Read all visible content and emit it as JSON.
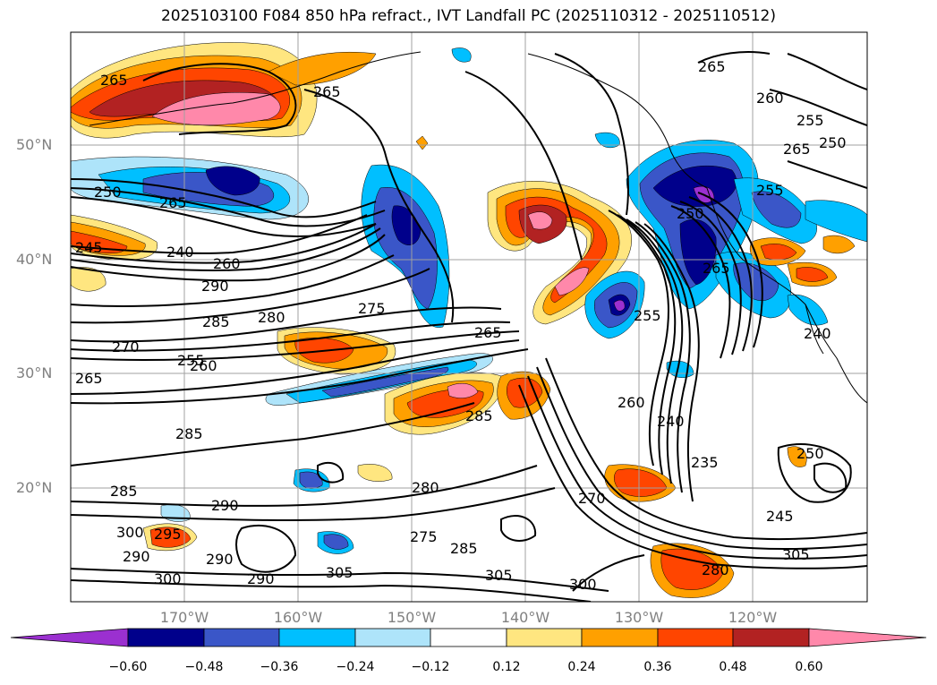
{
  "title": "2025103100 F084 850 hPa refract., IVT Landfall PC (2025110312 - 2025110512)",
  "lat_labels": [
    "50°N",
    "40°N",
    "30°N",
    "20°N"
  ],
  "lon_labels": [
    "170°W",
    "160°W",
    "150°W",
    "140°W",
    "130°W",
    "120°W"
  ],
  "colorbar": {
    "ticks": [
      "−0.60",
      "−0.48",
      "−0.36",
      "−0.24",
      "−0.12",
      "0.12",
      "0.24",
      "0.36",
      "0.48",
      "0.60"
    ],
    "colors": [
      "#9b30d0",
      "#00008b",
      "#3a56c8",
      "#00bfff",
      "#aee4fa",
      "#ffffff",
      "#ffe680",
      "#ffa000",
      "#ff4500",
      "#b22222",
      "#ff88aa"
    ]
  },
  "contour_labels": [
    {
      "text": "265"
    },
    {
      "text": "265"
    },
    {
      "text": "265"
    },
    {
      "text": "260"
    },
    {
      "text": "255"
    },
    {
      "text": "250"
    },
    {
      "text": "265"
    },
    {
      "text": "250"
    },
    {
      "text": "265"
    },
    {
      "text": "245"
    },
    {
      "text": "240"
    },
    {
      "text": "260"
    },
    {
      "text": "290"
    },
    {
      "text": "275"
    },
    {
      "text": "285"
    },
    {
      "text": "280"
    },
    {
      "text": "270"
    },
    {
      "text": "255"
    },
    {
      "text": "260"
    },
    {
      "text": "265"
    },
    {
      "text": "265"
    },
    {
      "text": "285"
    },
    {
      "text": "285"
    },
    {
      "text": "255"
    },
    {
      "text": "240"
    },
    {
      "text": "235"
    },
    {
      "text": "290"
    },
    {
      "text": "280"
    },
    {
      "text": "270"
    },
    {
      "text": "285"
    },
    {
      "text": "290"
    },
    {
      "text": "300"
    },
    {
      "text": "295"
    },
    {
      "text": "290"
    },
    {
      "text": "300"
    },
    {
      "text": "290"
    },
    {
      "text": "305"
    },
    {
      "text": "285"
    },
    {
      "text": "305"
    },
    {
      "text": "300"
    },
    {
      "text": "275"
    },
    {
      "text": "280"
    },
    {
      "text": "245"
    },
    {
      "text": "305"
    },
    {
      "text": "250"
    },
    {
      "text": "240"
    },
    {
      "text": "250"
    },
    {
      "text": "255"
    },
    {
      "text": "260"
    },
    {
      "text": "265"
    }
  ]
}
